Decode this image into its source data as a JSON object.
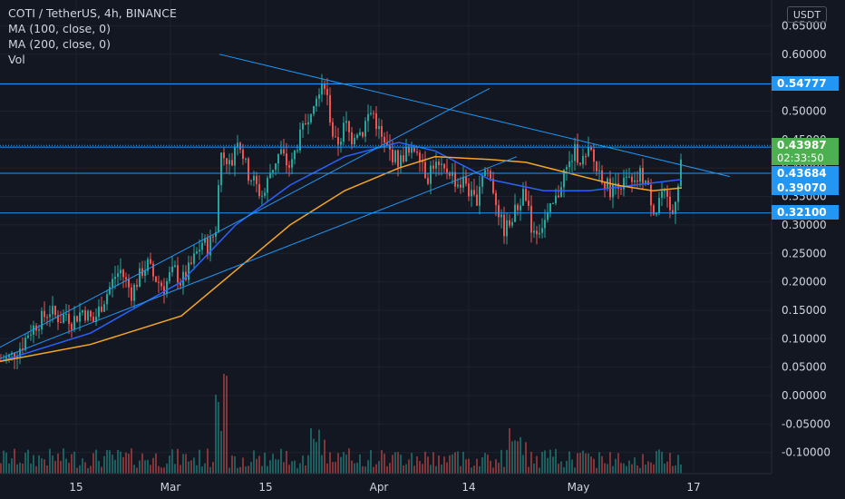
{
  "legend": {
    "title": "COTI / TetherUS, 4h, BINANCE",
    "ma100": "MA (100, close, 0)",
    "ma200": "MA (200, close, 0)",
    "vol": "Vol"
  },
  "currency": "USDT",
  "price_tags": {
    "last": "0.43987",
    "countdown": "02:33:50",
    "level1": "0.54777",
    "level2": "0.43684",
    "level3": "0.39070",
    "level4": "0.32100"
  },
  "colors": {
    "background": "#131722",
    "up": "#26a69a",
    "down": "#ef5350",
    "ma100": "#2962ff",
    "ma200": "#f5a623",
    "trendline": "#2196f3",
    "last_price": "#4caf50"
  },
  "chart_data": {
    "type": "candlestick",
    "y_ticks": [
      "0.65000",
      "0.60000",
      "0.55000",
      "0.50000",
      "0.45000",
      "0.40000",
      "0.35000",
      "0.30000",
      "0.25000",
      "0.20000",
      "0.15000",
      "0.10000",
      "0.05000",
      "0.00000",
      "-0.05000",
      "-0.10000"
    ],
    "x_ticks": [
      "15",
      "Mar",
      "15",
      "Apr",
      "14",
      "May",
      "17"
    ],
    "ylim": [
      -0.135,
      0.665
    ],
    "horizontal_levels": [
      0.54777,
      0.43684,
      0.3907,
      0.321
    ],
    "last_price": 0.43987,
    "close_path": [
      [
        0,
        0.062
      ],
      [
        6,
        0.065
      ],
      [
        12,
        0.07
      ],
      [
        18,
        0.08
      ],
      [
        24,
        0.09
      ],
      [
        30,
        0.11
      ],
      [
        36,
        0.12
      ],
      [
        42,
        0.13
      ],
      [
        48,
        0.14
      ],
      [
        54,
        0.15
      ],
      [
        60,
        0.14
      ],
      [
        66,
        0.135
      ],
      [
        72,
        0.145
      ],
      [
        78,
        0.13
      ],
      [
        84,
        0.14
      ],
      [
        90,
        0.15
      ],
      [
        96,
        0.14
      ],
      [
        102,
        0.13
      ],
      [
        108,
        0.15
      ],
      [
        114,
        0.17
      ],
      [
        120,
        0.19
      ],
      [
        126,
        0.21
      ],
      [
        132,
        0.22
      ],
      [
        138,
        0.2
      ],
      [
        144,
        0.18
      ],
      [
        150,
        0.2
      ],
      [
        156,
        0.22
      ],
      [
        162,
        0.23
      ],
      [
        168,
        0.21
      ],
      [
        174,
        0.2
      ],
      [
        180,
        0.19
      ],
      [
        186,
        0.21
      ],
      [
        192,
        0.22
      ],
      [
        198,
        0.2
      ],
      [
        204,
        0.21
      ],
      [
        210,
        0.23
      ],
      [
        216,
        0.25
      ],
      [
        222,
        0.27
      ],
      [
        228,
        0.26
      ],
      [
        234,
        0.28
      ],
      [
        238,
        0.3
      ],
      [
        242,
        0.43
      ],
      [
        248,
        0.42
      ],
      [
        254,
        0.4
      ],
      [
        260,
        0.46
      ],
      [
        266,
        0.43
      ],
      [
        272,
        0.39
      ],
      [
        278,
        0.38
      ],
      [
        284,
        0.36
      ],
      [
        290,
        0.35
      ],
      [
        296,
        0.39
      ],
      [
        302,
        0.41
      ],
      [
        308,
        0.43
      ],
      [
        314,
        0.41
      ],
      [
        320,
        0.4
      ],
      [
        326,
        0.44
      ],
      [
        332,
        0.46
      ],
      [
        338,
        0.49
      ],
      [
        344,
        0.52
      ],
      [
        350,
        0.54
      ],
      [
        356,
        0.56
      ],
      [
        362,
        0.5
      ],
      [
        368,
        0.44
      ],
      [
        374,
        0.45
      ],
      [
        380,
        0.48
      ],
      [
        386,
        0.45
      ],
      [
        392,
        0.47
      ],
      [
        398,
        0.46
      ],
      [
        404,
        0.49
      ],
      [
        410,
        0.5
      ],
      [
        416,
        0.47
      ],
      [
        422,
        0.44
      ],
      [
        428,
        0.43
      ],
      [
        434,
        0.42
      ],
      [
        440,
        0.41
      ],
      [
        446,
        0.43
      ],
      [
        452,
        0.42
      ],
      [
        458,
        0.44
      ],
      [
        464,
        0.42
      ],
      [
        470,
        0.38
      ],
      [
        476,
        0.41
      ],
      [
        482,
        0.4
      ],
      [
        488,
        0.39
      ],
      [
        494,
        0.4
      ],
      [
        500,
        0.38
      ],
      [
        506,
        0.37
      ],
      [
        512,
        0.38
      ],
      [
        518,
        0.35
      ],
      [
        524,
        0.34
      ],
      [
        530,
        0.39
      ],
      [
        536,
        0.4
      ],
      [
        542,
        0.37
      ],
      [
        548,
        0.33
      ],
      [
        554,
        0.29
      ],
      [
        560,
        0.3
      ],
      [
        566,
        0.32
      ],
      [
        572,
        0.34
      ],
      [
        578,
        0.36
      ],
      [
        584,
        0.3
      ],
      [
        590,
        0.29
      ],
      [
        596,
        0.3
      ],
      [
        602,
        0.31
      ],
      [
        608,
        0.33
      ],
      [
        614,
        0.35
      ],
      [
        620,
        0.39
      ],
      [
        626,
        0.4
      ],
      [
        632,
        0.43
      ],
      [
        638,
        0.42
      ],
      [
        644,
        0.41
      ],
      [
        650,
        0.43
      ],
      [
        656,
        0.4
      ],
      [
        662,
        0.39
      ],
      [
        668,
        0.37
      ],
      [
        674,
        0.36
      ],
      [
        680,
        0.38
      ],
      [
        686,
        0.37
      ],
      [
        692,
        0.38
      ],
      [
        698,
        0.36
      ],
      [
        704,
        0.39
      ],
      [
        710,
        0.38
      ],
      [
        716,
        0.35
      ],
      [
        722,
        0.32
      ],
      [
        728,
        0.36
      ],
      [
        734,
        0.34
      ],
      [
        740,
        0.31
      ],
      [
        744,
        0.35
      ],
      [
        748,
        0.39
      ],
      [
        752,
        0.44
      ]
    ],
    "ma100_path": [
      [
        0,
        0.06
      ],
      [
        100,
        0.11
      ],
      [
        200,
        0.2
      ],
      [
        260,
        0.3
      ],
      [
        320,
        0.37
      ],
      [
        380,
        0.42
      ],
      [
        440,
        0.445
      ],
      [
        480,
        0.43
      ],
      [
        540,
        0.38
      ],
      [
        600,
        0.36
      ],
      [
        650,
        0.36
      ],
      [
        700,
        0.37
      ],
      [
        752,
        0.38
      ]
    ],
    "ma200_path": [
      [
        0,
        0.06
      ],
      [
        100,
        0.09
      ],
      [
        200,
        0.14
      ],
      [
        260,
        0.22
      ],
      [
        320,
        0.3
      ],
      [
        380,
        0.36
      ],
      [
        440,
        0.4
      ],
      [
        480,
        0.42
      ],
      [
        540,
        0.415
      ],
      [
        580,
        0.41
      ],
      [
        630,
        0.39
      ],
      [
        680,
        0.37
      ],
      [
        720,
        0.36
      ],
      [
        752,
        0.365
      ]
    ],
    "trendlines": [
      [
        [
          242,
          0.6
        ],
        [
          805,
          0.385
        ]
      ],
      [
        [
          0,
          0.085
        ],
        [
          540,
          0.54
        ]
      ],
      [
        [
          0,
          0.065
        ],
        [
          570,
          0.42
        ]
      ]
    ],
    "volume_baseline": -0.12
  }
}
